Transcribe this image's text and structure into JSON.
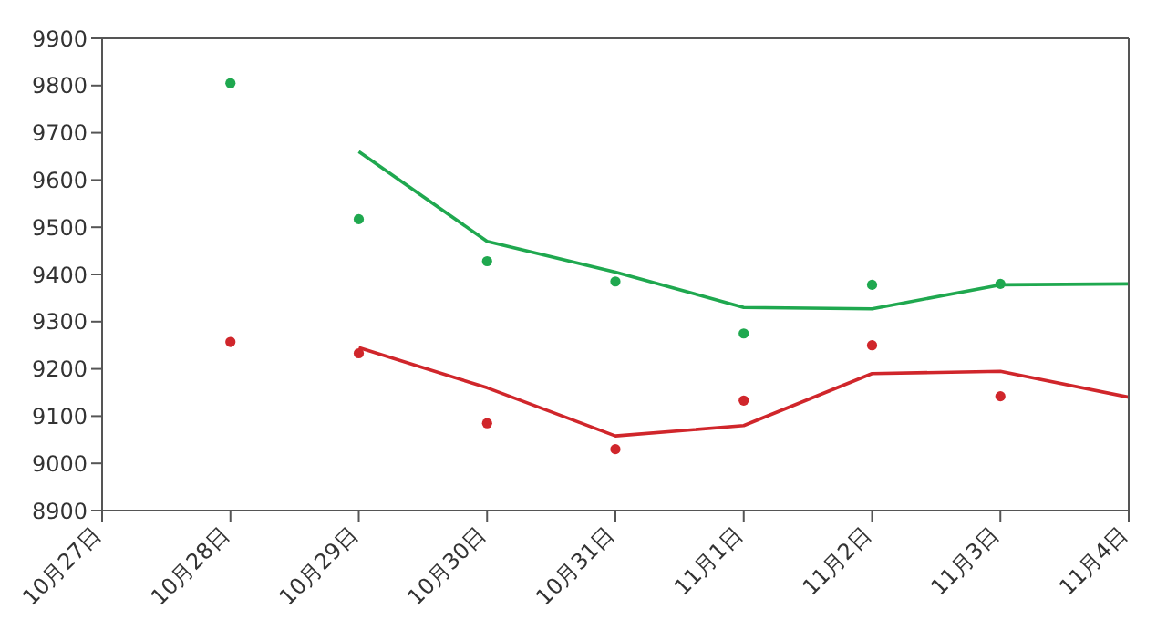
{
  "chart_data": {
    "type": "line",
    "categories": [
      "10月27日",
      "10月28日",
      "10月29日",
      "10月30日",
      "10月31日",
      "11月1日",
      "11月2日",
      "11月3日",
      "11月4日"
    ],
    "series": [
      {
        "type": "scatter",
        "marker": "circle",
        "color": "#1fa84f",
        "values": [
          null,
          9805,
          9517,
          9428,
          9385,
          9275,
          9378,
          9380,
          null
        ]
      },
      {
        "type": "scatter",
        "marker": "circle",
        "color": "#d0262b",
        "values": [
          null,
          9257,
          9233,
          9085,
          9030,
          9133,
          9250,
          9142,
          null
        ]
      },
      {
        "marker": "none",
        "color": "#1fa84f",
        "values": [
          null,
          null,
          9660,
          9470,
          9405,
          9330,
          9327,
          9378,
          9380
        ]
      },
      {
        "marker": "none",
        "color": "#d0262b",
        "values": [
          null,
          null,
          9245,
          9160,
          9058,
          9080,
          9190,
          9195,
          9140
        ]
      }
    ],
    "ylim": [
      8900,
      9900
    ],
    "yticks": [
      8900,
      9000,
      9100,
      9200,
      9300,
      9400,
      9500,
      9600,
      9700,
      9800,
      9900
    ],
    "grid": false,
    "line_style": "solid"
  }
}
